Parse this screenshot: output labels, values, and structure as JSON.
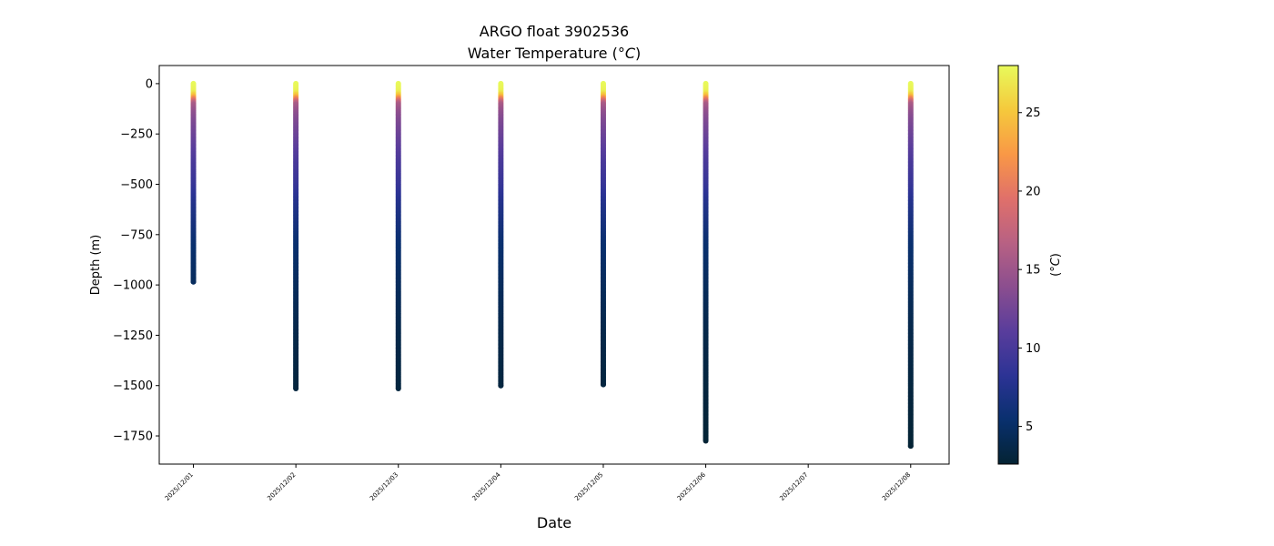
{
  "chart_data": {
    "type": "scatter",
    "title": "ARGO float 3902536",
    "subtitle_prefix": "Water Temperature (",
    "subtitle_unit": "°C",
    "subtitle_suffix": ")",
    "xlabel": "Date",
    "ylabel": "Depth (m)",
    "x_ticks": [
      "2025/12/01",
      "2025/12/02",
      "2025/12/03",
      "2025/12/04",
      "2025/12/05",
      "2025/12/06",
      "2025/12/07",
      "2025/12/08"
    ],
    "y_ticks": [
      0,
      -250,
      -500,
      -750,
      -1000,
      -1250,
      -1500,
      -1750
    ],
    "y_tick_labels": [
      "0",
      "−250",
      "−500",
      "−750",
      "−1000",
      "−1250",
      "−1500",
      "−1750"
    ],
    "xlim": [
      "2025/11/30 16:00",
      "2025/12/08 09:00"
    ],
    "ylim": [
      -1890,
      90
    ],
    "colorbar": {
      "label_prefix": "(",
      "label_unit": "°C",
      "label_suffix": ")",
      "range": [
        2.6,
        28.0
      ],
      "ticks": [
        5,
        10,
        15,
        20,
        25
      ],
      "colormap": "thermal",
      "colors": [
        "#042333",
        "#09306e",
        "#2c3395",
        "#593d9c",
        "#8b4e8f",
        "#b86183",
        "#e0706a",
        "#f99846",
        "#f5c93c",
        "#e8fa5b"
      ]
    },
    "grid": false,
    "profiles": [
      {
        "date": "2025/12/01",
        "max_depth": -985
      },
      {
        "date": "2025/12/02",
        "max_depth": -1515
      },
      {
        "date": "2025/12/03",
        "max_depth": -1515
      },
      {
        "date": "2025/12/04",
        "max_depth": -1500
      },
      {
        "date": "2025/12/05",
        "max_depth": -1495
      },
      {
        "date": "2025/12/06",
        "max_depth": -1775
      },
      {
        "date": "2025/12/08",
        "max_depth": -1800
      }
    ],
    "temperature_profile": {
      "depth": [
        0,
        -40,
        -60,
        -80,
        -100,
        -150,
        -200,
        -300,
        -400,
        -500,
        -600,
        -800,
        -1000,
        -1250,
        -1500,
        -1800
      ],
      "temperature": [
        28,
        27.5,
        25,
        20,
        16,
        14,
        13,
        11.5,
        10,
        9,
        7.5,
        5.5,
        4.6,
        3.7,
        3.2,
        2.7
      ]
    }
  }
}
